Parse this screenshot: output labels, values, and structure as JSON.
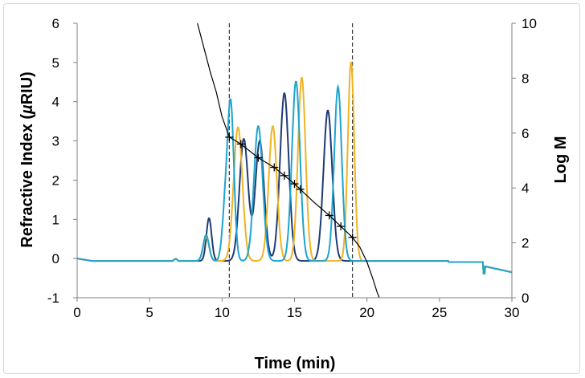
{
  "chart_data": {
    "type": "line",
    "xlabel": "Time (min)",
    "ylabel": "Refractive Index (µRIU)",
    "ylabel_parts": [
      "Refractive Index (",
      "µ",
      "RIU)"
    ],
    "y2label": "Log M",
    "xlim": [
      0,
      30
    ],
    "ylim": [
      -1,
      6
    ],
    "y2lim": [
      0,
      10
    ],
    "xticks": [
      "0",
      "5",
      "10",
      "15",
      "20",
      "25",
      "30"
    ],
    "yticks": [
      "-1",
      "0",
      "1",
      "2",
      "3",
      "4",
      "5",
      "6"
    ],
    "y2ticks": [
      "0",
      "2",
      "4",
      "6",
      "8",
      "10"
    ],
    "grid": false,
    "legend": "none",
    "vlines": [
      10.5,
      19.0
    ],
    "series": [
      {
        "color": "#1f3b73",
        "axis": "left",
        "baseline": -0.06,
        "peaks": [
          [
            9.1,
            1.03,
            0.18
          ],
          [
            11.5,
            3.05,
            0.3
          ],
          [
            12.6,
            3.0,
            0.3
          ],
          [
            14.3,
            4.22,
            0.3
          ],
          [
            17.3,
            3.78,
            0.3
          ]
        ]
      },
      {
        "color": "#f0b323",
        "axis": "left",
        "baseline": -0.06,
        "peaks": [
          [
            8.9,
            0.55,
            0.2
          ],
          [
            11.1,
            3.35,
            0.3
          ],
          [
            13.5,
            3.38,
            0.28
          ],
          [
            15.5,
            4.62,
            0.26
          ],
          [
            18.9,
            5.02,
            0.22
          ]
        ]
      },
      {
        "color": "#1ea4cf",
        "axis": "left",
        "baseline": -0.06,
        "peaks": [
          [
            8.9,
            0.6,
            0.2
          ],
          [
            10.2,
            1.1,
            0.2
          ],
          [
            10.6,
            3.9,
            0.22
          ],
          [
            12.5,
            3.38,
            0.3
          ],
          [
            15.1,
            4.52,
            0.28
          ],
          [
            18.0,
            4.38,
            0.26
          ]
        ]
      }
    ],
    "calibration_points": [
      [
        10.5,
        5.85
      ],
      [
        11.3,
        5.6
      ],
      [
        12.5,
        5.1
      ],
      [
        13.6,
        4.75
      ],
      [
        14.3,
        4.45
      ],
      [
        15.0,
        4.15
      ],
      [
        15.4,
        3.95
      ],
      [
        17.4,
        3.0
      ],
      [
        18.2,
        2.6
      ],
      [
        19.0,
        2.2
      ]
    ],
    "calibration_curve": [
      [
        8.3,
        10.0
      ],
      [
        8.8,
        9.0
      ],
      [
        9.2,
        8.2
      ],
      [
        9.6,
        7.5
      ],
      [
        10.0,
        6.6
      ],
      [
        10.5,
        5.85
      ],
      [
        11.3,
        5.6
      ],
      [
        12.5,
        5.1
      ],
      [
        13.6,
        4.75
      ],
      [
        14.3,
        4.45
      ],
      [
        15.0,
        4.15
      ],
      [
        15.4,
        3.95
      ],
      [
        16.3,
        3.5
      ],
      [
        17.4,
        3.0
      ],
      [
        18.2,
        2.6
      ],
      [
        19.0,
        2.2
      ],
      [
        19.5,
        1.85
      ],
      [
        20.0,
        1.3
      ],
      [
        20.4,
        0.7
      ],
      [
        20.7,
        0.2
      ],
      [
        20.85,
        0.0
      ]
    ]
  }
}
